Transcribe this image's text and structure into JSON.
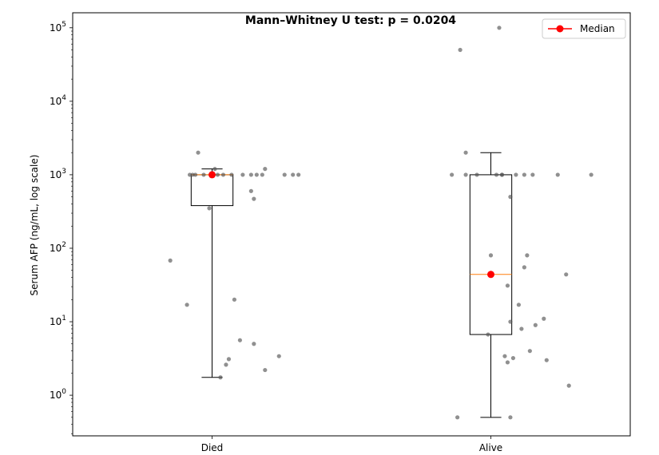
{
  "chart_data": {
    "type": "box",
    "title": "Mann–Whitney U test: p = 0.0204",
    "ylabel": "Serum AFP (ng/mL, log scale)",
    "xlabel": "",
    "yscale": "log",
    "ylim": [
      0.28,
      160000
    ],
    "categories": [
      "Died",
      "Alive"
    ],
    "y_ticks": [
      {
        "value": 1,
        "label": "10⁰",
        "base": "10",
        "exp": "0"
      },
      {
        "value": 10,
        "label": "10¹",
        "base": "10",
        "exp": "1"
      },
      {
        "value": 100,
        "label": "10²",
        "base": "10",
        "exp": "2"
      },
      {
        "value": 1000,
        "label": "10³",
        "base": "10",
        "exp": "3"
      },
      {
        "value": 10000,
        "label": "10⁴",
        "base": "10",
        "exp": "4"
      },
      {
        "value": 100000,
        "label": "10⁵",
        "base": "10",
        "exp": "5"
      }
    ],
    "legend": {
      "position": "top-right",
      "entries": [
        {
          "label": "Median",
          "color": "#ff0000"
        }
      ]
    },
    "colors": {
      "box": "#000000",
      "median_line": "#ff7f0e",
      "median_marker": "#ff0000",
      "points": "#555555"
    },
    "groups": [
      {
        "name": "Died",
        "whisker_low": 1.75,
        "q1": 380,
        "median": 1000,
        "q3": 1000,
        "whisker_high": 1200,
        "points": [
          {
            "x": 0.85,
            "y": 68
          },
          {
            "x": 0.91,
            "y": 17
          },
          {
            "x": 0.92,
            "y": 1000
          },
          {
            "x": 0.93,
            "y": 1000
          },
          {
            "x": 0.94,
            "y": 1000
          },
          {
            "x": 0.95,
            "y": 2000
          },
          {
            "x": 0.97,
            "y": 1000
          },
          {
            "x": 0.99,
            "y": 350
          },
          {
            "x": 1.0,
            "y": 1000
          },
          {
            "x": 1.01,
            "y": 1200
          },
          {
            "x": 1.02,
            "y": 1000
          },
          {
            "x": 1.04,
            "y": 1000
          },
          {
            "x": 1.03,
            "y": 1.75
          },
          {
            "x": 1.05,
            "y": 2.6
          },
          {
            "x": 1.06,
            "y": 3.1
          },
          {
            "x": 1.07,
            "y": 1000
          },
          {
            "x": 1.08,
            "y": 20
          },
          {
            "x": 1.1,
            "y": 5.6
          },
          {
            "x": 1.11,
            "y": 1000
          },
          {
            "x": 1.14,
            "y": 1000
          },
          {
            "x": 1.14,
            "y": 600
          },
          {
            "x": 1.15,
            "y": 470
          },
          {
            "x": 1.16,
            "y": 1000
          },
          {
            "x": 1.15,
            "y": 5.0
          },
          {
            "x": 1.18,
            "y": 1000
          },
          {
            "x": 1.19,
            "y": 1200
          },
          {
            "x": 1.19,
            "y": 2.2
          },
          {
            "x": 1.24,
            "y": 3.4
          },
          {
            "x": 1.26,
            "y": 1000
          },
          {
            "x": 1.29,
            "y": 1000
          },
          {
            "x": 1.31,
            "y": 1000
          }
        ]
      },
      {
        "name": "Alive",
        "whisker_low": 0.5,
        "q1": 6.7,
        "median": 44,
        "q3": 1000,
        "whisker_high": 2000,
        "points": [
          {
            "x": 1.86,
            "y": 1000
          },
          {
            "x": 1.88,
            "y": 0.5
          },
          {
            "x": 1.89,
            "y": 50000
          },
          {
            "x": 1.91,
            "y": 2000
          },
          {
            "x": 1.91,
            "y": 1000
          },
          {
            "x": 1.95,
            "y": 1000
          },
          {
            "x": 1.99,
            "y": 6.7
          },
          {
            "x": 2.0,
            "y": 80
          },
          {
            "x": 2.02,
            "y": 1000
          },
          {
            "x": 2.04,
            "y": 1000
          },
          {
            "x": 2.04,
            "y": 1000
          },
          {
            "x": 2.03,
            "y": 100000
          },
          {
            "x": 2.05,
            "y": 3.4
          },
          {
            "x": 2.06,
            "y": 31
          },
          {
            "x": 2.06,
            "y": 2.8
          },
          {
            "x": 2.07,
            "y": 10
          },
          {
            "x": 2.08,
            "y": 3.2
          },
          {
            "x": 2.09,
            "y": 1000
          },
          {
            "x": 2.1,
            "y": 17
          },
          {
            "x": 2.11,
            "y": 8.0
          },
          {
            "x": 2.12,
            "y": 1000
          },
          {
            "x": 2.12,
            "y": 55
          },
          {
            "x": 2.13,
            "y": 80
          },
          {
            "x": 2.14,
            "y": 4.0
          },
          {
            "x": 2.15,
            "y": 1000
          },
          {
            "x": 2.16,
            "y": 9.0
          },
          {
            "x": 2.07,
            "y": 500
          },
          {
            "x": 2.07,
            "y": 0.5
          },
          {
            "x": 2.19,
            "y": 11
          },
          {
            "x": 2.2,
            "y": 3.0
          },
          {
            "x": 2.24,
            "y": 1000
          },
          {
            "x": 2.27,
            "y": 44
          },
          {
            "x": 2.28,
            "y": 1.35
          },
          {
            "x": 2.36,
            "y": 1000
          }
        ]
      }
    ]
  }
}
